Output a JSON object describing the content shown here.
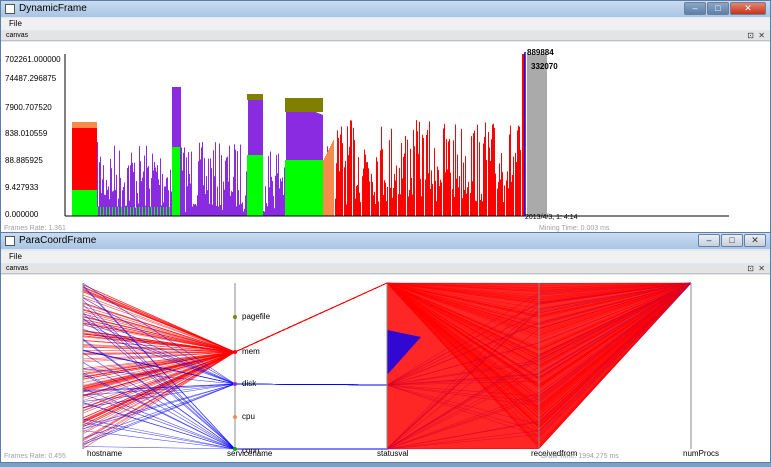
{
  "window1": {
    "title": "DynamicFrame",
    "menu": "File",
    "canvas_label": "canvas",
    "buttons": {
      "minimize": "‒",
      "maximize": "□",
      "close": "✕"
    },
    "canvas_controls": {
      "restore": "⊡",
      "close": "✕"
    },
    "yticks": [
      "702261.000000",
      "74487.296875",
      "7900.707520",
      "838.010559",
      "88.885925",
      "9.427933",
      "0.000000"
    ],
    "callouts": {
      "top1": "889884",
      "top2": "332070",
      "time": "2013/4/3, 1: 4:14"
    },
    "status_left": "Frames Rate: 1.361",
    "status_right": "Mining Time: 0.003 ms"
  },
  "window2": {
    "title": "ParaCoordFrame",
    "menu": "File",
    "canvas_label": "canvas",
    "buttons": {
      "minimize": "‒",
      "maximize": "□",
      "close": "✕"
    },
    "canvas_controls": {
      "restore": "⊡",
      "close": "✕"
    },
    "axes": [
      "hostname",
      "servicename",
      "statusval",
      "receivedfrom",
      "numProcs"
    ],
    "services": [
      "pagefile",
      "mem",
      "disk",
      "cpu",
      "conn"
    ],
    "status_left": "Frames Rate: 0.455",
    "status_right": "Draw Time: 1994.275 ms"
  },
  "colors": {
    "red": "#ff0000",
    "purple": "#8a2be2",
    "green": "#00ff00",
    "olive": "#808000",
    "orange": "#f58c4e",
    "gray": "#aaaaaa",
    "blue": "#0000ff"
  }
}
